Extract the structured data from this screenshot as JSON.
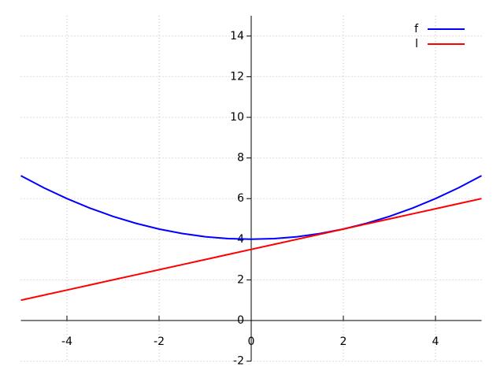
{
  "chart_data": {
    "type": "line",
    "x": [
      -5,
      -4.5,
      -4,
      -3.5,
      -3,
      -2.5,
      -2,
      -1.5,
      -1,
      -0.5,
      0,
      0.5,
      1,
      1.5,
      2,
      2.5,
      3,
      3.5,
      4,
      4.5,
      5
    ],
    "series": [
      {
        "name": "f",
        "color": "#0000ff",
        "values": [
          7.125,
          6.53125,
          6,
          5.53125,
          5.125,
          4.78125,
          4.5,
          4.28125,
          4.125,
          4.03125,
          4,
          4.03125,
          4.125,
          4.28125,
          4.5,
          4.78125,
          5.125,
          5.53125,
          6,
          6.53125,
          7.125
        ]
      },
      {
        "name": "l",
        "color": "#ff0000",
        "values": [
          1,
          1.25,
          1.5,
          1.75,
          2,
          2.25,
          2.5,
          2.75,
          3,
          3.25,
          3.5,
          3.75,
          4,
          4.25,
          4.5,
          4.75,
          5,
          5.25,
          5.5,
          5.75,
          6
        ]
      }
    ],
    "xlim": [
      -5,
      5
    ],
    "ylim": [
      -2,
      15
    ],
    "xticks": [
      -4,
      -2,
      0,
      2,
      4
    ],
    "yticks": [
      -2,
      0,
      2,
      4,
      6,
      8,
      10,
      12,
      14
    ],
    "grid": true,
    "legend": "upper-right"
  }
}
